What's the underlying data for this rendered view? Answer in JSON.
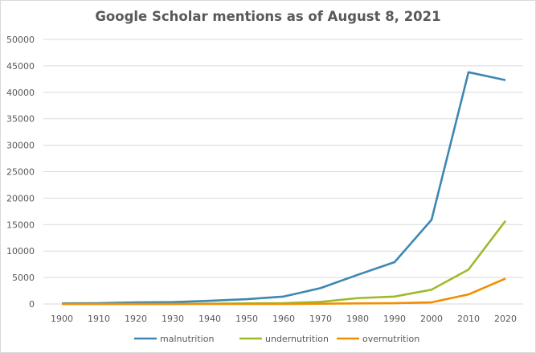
{
  "chart_data": {
    "type": "line",
    "title": "Google Scholar mentions as of August 8, 2021",
    "xlabel": "",
    "ylabel": "",
    "x": [
      "1900",
      "1910",
      "1920",
      "1930",
      "1940",
      "1950",
      "1960",
      "1970",
      "1980",
      "1990",
      "2000",
      "2010",
      "2020"
    ],
    "ylim": [
      0,
      50000
    ],
    "yticks": [
      "0",
      "5000",
      "10000",
      "15000",
      "20000",
      "25000",
      "30000",
      "35000",
      "40000",
      "45000",
      "50000"
    ],
    "grid": true,
    "legend": "bottom",
    "series": [
      {
        "name": "malnutrition",
        "color": "#3e87b2",
        "values": [
          100,
          150,
          300,
          350,
          600,
          900,
          1400,
          3000,
          5500,
          7900,
          15900,
          43800,
          42300
        ]
      },
      {
        "name": "undernutrition",
        "color": "#9cbb2a",
        "values": [
          0,
          0,
          0,
          0,
          50,
          100,
          150,
          400,
          1100,
          1400,
          2700,
          6500,
          15700
        ]
      },
      {
        "name": "overnutrition",
        "color": "#f28e00",
        "values": [
          0,
          0,
          0,
          0,
          0,
          0,
          0,
          50,
          100,
          150,
          300,
          1800,
          4800
        ]
      }
    ]
  }
}
